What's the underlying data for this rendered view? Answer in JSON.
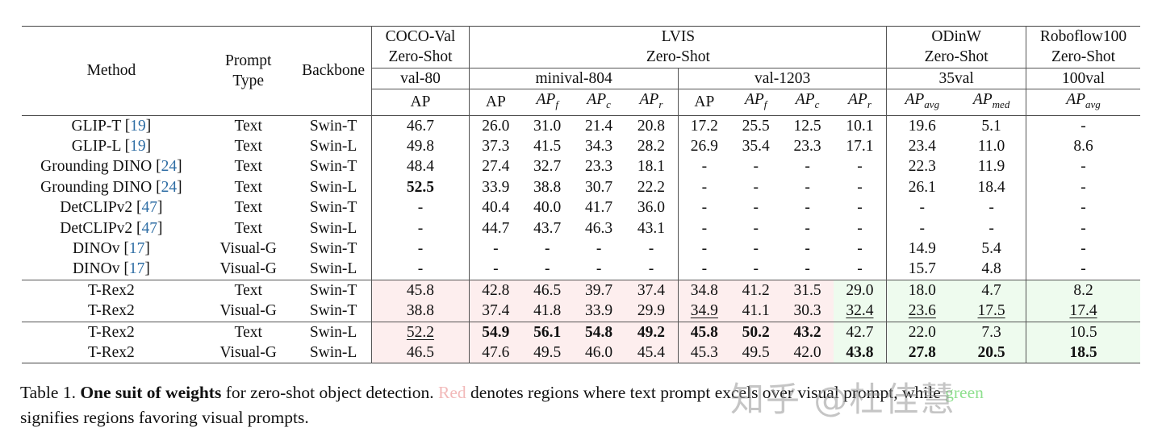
{
  "table": {
    "header": {
      "method": "Method",
      "prompt_type": [
        "Prompt",
        "Type"
      ],
      "backbone": "Backbone",
      "groups": [
        {
          "name": "COCO-Val",
          "sub": "Zero-Shot",
          "split": "val-80"
        },
        {
          "name": "LVIS",
          "sub": "Zero-Shot",
          "splits": [
            "minival-804",
            "val-1203"
          ]
        },
        {
          "name": "ODinW",
          "sub": "Zero-Shot",
          "split": "35val"
        },
        {
          "name": "Roboflow100",
          "sub": "Zero-Shot",
          "split": "100val"
        }
      ],
      "metrics": {
        "coco": "AP",
        "lvis_minival": [
          "AP",
          "AP_f",
          "AP_c",
          "AP_r"
        ],
        "lvis_val": [
          "AP",
          "AP_f",
          "AP_c",
          "AP_r"
        ],
        "odinw": [
          "AP_avg",
          "AP_med"
        ],
        "rf100": "AP_avg"
      }
    },
    "rows": [
      {
        "method": "GLIP-T",
        "cite": "19",
        "prompt": "Text",
        "backbone": "Swin-T",
        "values": [
          "46.7",
          "26.0",
          "31.0",
          "21.4",
          "20.8",
          "17.2",
          "25.5",
          "12.5",
          "10.1",
          "19.6",
          "5.1",
          "-"
        ]
      },
      {
        "method": "GLIP-L",
        "cite": "19",
        "prompt": "Text",
        "backbone": "Swin-L",
        "values": [
          "49.8",
          "37.3",
          "41.5",
          "34.3",
          "28.2",
          "26.9",
          "35.4",
          "23.3",
          "17.1",
          "23.4",
          "11.0",
          "8.6"
        ]
      },
      {
        "method": "Grounding DINO",
        "cite": "24",
        "prompt": "Text",
        "backbone": "Swin-T",
        "values": [
          "48.4",
          "27.4",
          "32.7",
          "23.3",
          "18.1",
          "-",
          "-",
          "-",
          "-",
          "22.3",
          "11.9",
          "-"
        ]
      },
      {
        "method": "Grounding DINO",
        "cite": "24",
        "prompt": "Text",
        "backbone": "Swin-L",
        "values": [
          "52.5",
          "33.9",
          "38.8",
          "30.7",
          "22.2",
          "-",
          "-",
          "-",
          "-",
          "26.1",
          "18.4",
          "-"
        ]
      },
      {
        "method": "DetCLIPv2",
        "cite": "47",
        "prompt": "Text",
        "backbone": "Swin-T",
        "values": [
          "-",
          "40.4",
          "40.0",
          "41.7",
          "36.0",
          "-",
          "-",
          "-",
          "-",
          "-",
          "-",
          "-"
        ]
      },
      {
        "method": "DetCLIPv2",
        "cite": "47",
        "prompt": "Text",
        "backbone": "Swin-L",
        "values": [
          "-",
          "44.7",
          "43.7",
          "46.3",
          "43.1",
          "-",
          "-",
          "-",
          "-",
          "-",
          "-",
          "-"
        ]
      },
      {
        "method": "DINOv",
        "cite": "17",
        "prompt": "Visual-G",
        "backbone": "Swin-T",
        "values": [
          "-",
          "-",
          "-",
          "-",
          "-",
          "-",
          "-",
          "-",
          "-",
          "14.9",
          "5.4",
          "-"
        ]
      },
      {
        "method": "DINOv",
        "cite": "17",
        "prompt": "Visual-G",
        "backbone": "Swin-L",
        "values": [
          "-",
          "-",
          "-",
          "-",
          "-",
          "-",
          "-",
          "-",
          "-",
          "15.7",
          "4.8",
          "-"
        ]
      },
      {
        "method": "T-Rex2",
        "prompt": "Text",
        "backbone": "Swin-T",
        "values": [
          "45.8",
          "42.8",
          "46.5",
          "39.7",
          "37.4",
          "34.8",
          "41.2",
          "31.5",
          "29.0",
          "18.0",
          "4.7",
          "8.2"
        ]
      },
      {
        "method": "T-Rex2",
        "prompt": "Visual-G",
        "backbone": "Swin-T",
        "values": [
          "38.8",
          "37.4",
          "41.8",
          "33.9",
          "29.9",
          "34.9",
          "41.1",
          "30.3",
          "32.4",
          "23.6",
          "17.5",
          "17.4"
        ]
      },
      {
        "method": "T-Rex2",
        "prompt": "Text",
        "backbone": "Swin-L",
        "values": [
          "52.2",
          "54.9",
          "56.1",
          "54.8",
          "49.2",
          "45.8",
          "50.2",
          "43.2",
          "42.7",
          "22.0",
          "7.3",
          "10.5"
        ]
      },
      {
        "method": "T-Rex2",
        "prompt": "Visual-G",
        "backbone": "Swin-L",
        "values": [
          "46.5",
          "47.6",
          "49.5",
          "46.0",
          "45.4",
          "45.3",
          "49.5",
          "42.0",
          "43.8",
          "27.8",
          "20.5",
          "18.5"
        ]
      }
    ],
    "colors": {
      "red_region": "#fdeeee",
      "green_region": "#eefbee",
      "cite": "#2e6da4"
    }
  },
  "caption": {
    "label": "Table 1.",
    "bold": "One suit of weights",
    "text1": " for zero-shot object detection. ",
    "red_word": "Red",
    "text2": " denotes regions where text prompt excels over visual prompt, while ",
    "green_word": "green",
    "line2": "signifies regions favoring visual prompts."
  },
  "watermark": "知乎 @杜佳慧"
}
